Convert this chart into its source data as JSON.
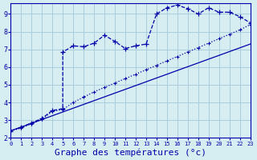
{
  "background_color": "#d6eef2",
  "grid_color": "#aaccdd",
  "line_color": "#0000aa",
  "xlabel": "Graphe des températures (°c)",
  "xlabel_fontsize": 8,
  "ylim": [
    2,
    9.6
  ],
  "xlim": [
    0,
    23
  ],
  "yticks": [
    2,
    3,
    4,
    5,
    6,
    7,
    8,
    9
  ],
  "xticks": [
    0,
    1,
    2,
    3,
    4,
    5,
    6,
    7,
    8,
    9,
    10,
    11,
    12,
    13,
    14,
    15,
    16,
    17,
    18,
    19,
    20,
    21,
    22,
    23
  ],
  "curve1_x": [
    0,
    1,
    2,
    3,
    4,
    5,
    5,
    6,
    7,
    8,
    9,
    10,
    11,
    12,
    13,
    14,
    15,
    16,
    17,
    18,
    19,
    20,
    21,
    22,
    23
  ],
  "curve1_y": [
    2.4,
    2.6,
    2.85,
    3.1,
    3.55,
    3.65,
    6.85,
    7.2,
    7.15,
    7.35,
    7.8,
    7.45,
    7.05,
    7.2,
    7.3,
    9.0,
    9.35,
    9.5,
    9.3,
    9.0,
    9.35,
    9.1,
    9.1,
    8.85,
    8.5
  ],
  "curve2_x": [
    0,
    1,
    2,
    3,
    4,
    5,
    6,
    7,
    8,
    9,
    10,
    11,
    12,
    13,
    14,
    15,
    16,
    17,
    18,
    19,
    20,
    21,
    22,
    23
  ],
  "curve2_y": [
    2.4,
    2.55,
    2.8,
    3.05,
    3.5,
    3.6,
    4.0,
    4.3,
    4.6,
    4.85,
    5.1,
    5.35,
    5.6,
    5.85,
    6.1,
    6.35,
    6.6,
    6.85,
    7.1,
    7.35,
    7.6,
    7.85,
    8.1,
    8.4
  ],
  "curve3_x": [
    0,
    23
  ],
  "curve3_y": [
    2.4,
    7.3
  ]
}
